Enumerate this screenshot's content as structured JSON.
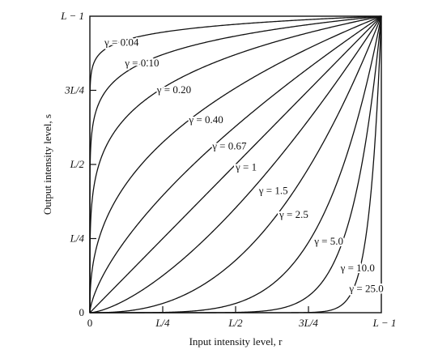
{
  "chart_data": {
    "type": "line",
    "xlabel": "Input intensity level, r",
    "ylabel": "Output intensity level, s",
    "xlim": [
      0,
      1
    ],
    "ylim": [
      0,
      1
    ],
    "x_ticks": [
      {
        "value": 0,
        "label": "0"
      },
      {
        "value": 0.25,
        "label": "L/4"
      },
      {
        "value": 0.5,
        "label": "L/2"
      },
      {
        "value": 0.75,
        "label": "3L/4"
      },
      {
        "value": 1,
        "label": "L − 1"
      }
    ],
    "y_ticks": [
      {
        "value": 0,
        "label": "0"
      },
      {
        "value": 0.25,
        "label": "L/4"
      },
      {
        "value": 0.5,
        "label": "L/2"
      },
      {
        "value": 0.75,
        "label": "3L/4"
      },
      {
        "value": 1,
        "label": "L − 1"
      }
    ],
    "function": "s = r^gamma",
    "series": [
      {
        "name": "γ = 0.04",
        "gamma": 0.04,
        "label_at": [
          0.05,
          0.9
        ]
      },
      {
        "name": "γ = 0.10",
        "gamma": 0.1,
        "label_at": [
          0.12,
          0.83
        ]
      },
      {
        "name": "γ = 0.20",
        "gamma": 0.2,
        "label_at": [
          0.23,
          0.74
        ]
      },
      {
        "name": "γ = 0.40",
        "gamma": 0.4,
        "label_at": [
          0.34,
          0.64
        ]
      },
      {
        "name": "γ = 0.67",
        "gamma": 0.67,
        "label_at": [
          0.42,
          0.55
        ]
      },
      {
        "name": "γ = 1",
        "gamma": 1,
        "label_at": [
          0.5,
          0.48
        ]
      },
      {
        "name": "γ = 1.5",
        "gamma": 1.5,
        "label_at": [
          0.58,
          0.4
        ]
      },
      {
        "name": "γ = 2.5",
        "gamma": 2.5,
        "label_at": [
          0.65,
          0.32
        ]
      },
      {
        "name": "γ = 5.0",
        "gamma": 5.0,
        "label_at": [
          0.77,
          0.23
        ]
      },
      {
        "name": "γ = 10.0",
        "gamma": 10.0,
        "label_at": [
          0.86,
          0.14
        ]
      },
      {
        "name": "γ = 25.0",
        "gamma": 25.0,
        "label_at": [
          0.89,
          0.07
        ]
      }
    ],
    "grid": false
  }
}
